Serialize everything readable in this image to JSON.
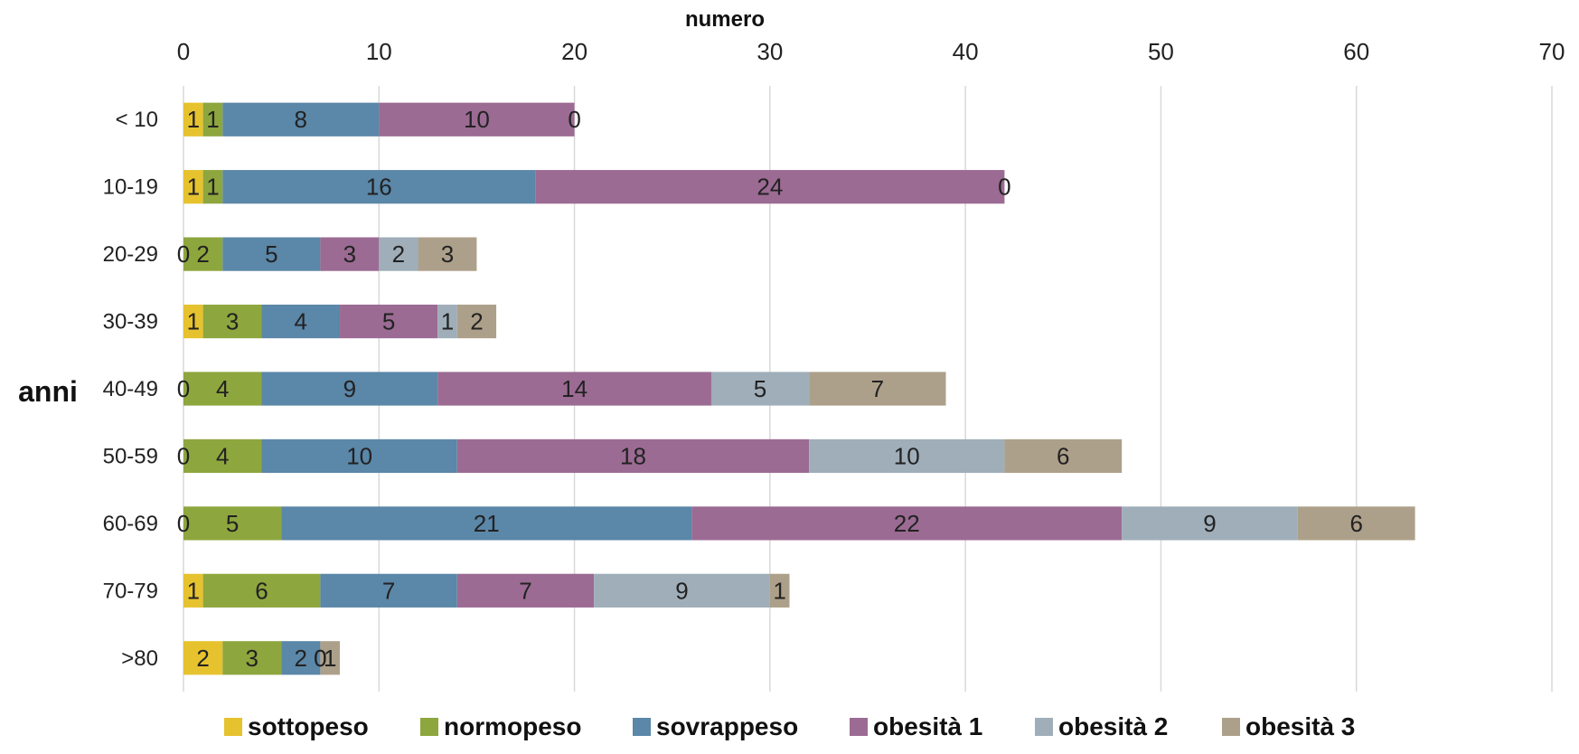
{
  "chart_data": {
    "type": "bar",
    "orientation": "horizontal",
    "stacked": true,
    "xlabel": "numero",
    "ylabel": "anni",
    "xlim": [
      0,
      70
    ],
    "x_ticks": [
      "0",
      "10",
      "20",
      "30",
      "40",
      "50",
      "60",
      "70"
    ],
    "x_axis_position": "top",
    "grid": true,
    "legend_position": "bottom",
    "categories": [
      "< 10",
      "10-19",
      "20-29",
      "30-39",
      "40-49",
      "50-59",
      "60-69",
      "70-79",
      ">80"
    ],
    "series": [
      {
        "name": "sottopeso",
        "color": "#E6C22E",
        "values": [
          1,
          1,
          0,
          1,
          0,
          0,
          0,
          1,
          2
        ]
      },
      {
        "name": "normopeso",
        "color": "#8EA63E",
        "values": [
          1,
          1,
          2,
          3,
          4,
          4,
          5,
          6,
          3
        ]
      },
      {
        "name": "sovrappeso",
        "color": "#5B87A8",
        "values": [
          8,
          16,
          5,
          4,
          9,
          10,
          21,
          7,
          2
        ]
      },
      {
        "name": "obesità 1",
        "color": "#9B6B93",
        "values": [
          10,
          24,
          3,
          5,
          14,
          18,
          22,
          7,
          0
        ]
      },
      {
        "name": "obesità 2",
        "color": "#9FAEB9",
        "values": [
          0,
          0,
          2,
          1,
          5,
          10,
          9,
          9,
          0
        ]
      },
      {
        "name": "obesità 3",
        "color": "#ADA08A",
        "values": [
          0,
          0,
          3,
          2,
          7,
          6,
          6,
          1,
          1
        ]
      }
    ]
  }
}
